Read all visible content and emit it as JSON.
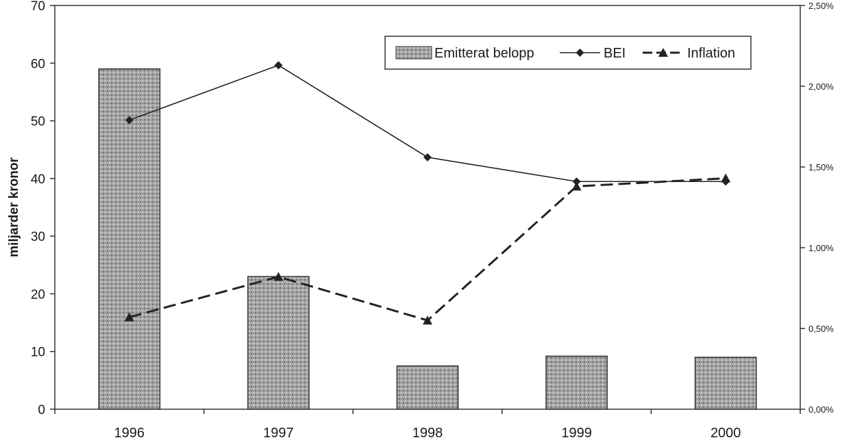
{
  "chart_data": {
    "type": "bar",
    "categories": [
      "1996",
      "1997",
      "1998",
      "1999",
      "2000"
    ],
    "series": [
      {
        "name": "Emitterat belopp",
        "type": "bar",
        "axis": "left",
        "values": [
          59,
          23,
          7.5,
          9.2,
          9.0
        ]
      },
      {
        "name": "BEI",
        "type": "line",
        "axis": "right",
        "marker": "diamond",
        "style": "solid",
        "values": [
          1.79,
          2.13,
          1.56,
          1.41,
          1.41
        ]
      },
      {
        "name": "Inflation",
        "type": "line",
        "axis": "right",
        "marker": "triangle",
        "style": "dashed",
        "values": [
          0.57,
          0.82,
          0.55,
          1.38,
          1.43
        ]
      }
    ],
    "title": "",
    "xlabel": "",
    "ylabel": "miljarder kronor",
    "ylim": [
      0,
      70
    ],
    "y_ticks": [
      "0",
      "10",
      "20",
      "30",
      "40",
      "50",
      "60",
      "70"
    ],
    "y2lim": [
      0,
      2.5
    ],
    "y2_ticks": [
      "0,00%",
      "0,50%",
      "1,00%",
      "1,50%",
      "2,00%",
      "2,50%"
    ],
    "legend_position": "top-right",
    "grid": false,
    "colors": {
      "bar": "#9a9a9a",
      "line": "#222222",
      "axis": "#333333"
    }
  }
}
